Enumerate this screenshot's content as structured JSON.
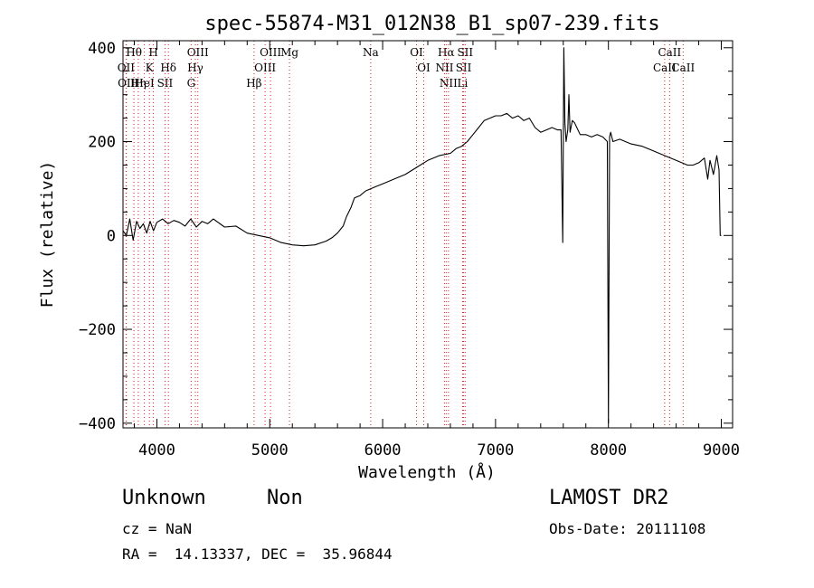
{
  "chart_data": {
    "type": "line",
    "title": "spec-55874-M31_012N38_B1_sp07-239.fits",
    "xlabel": "Wavelength (Å)",
    "ylabel": "Flux (relative)",
    "xlim": [
      3700,
      9100
    ],
    "ylim": [
      -410,
      415
    ],
    "x_ticks": [
      4000,
      5000,
      6000,
      7000,
      8000,
      9000
    ],
    "x_tick_labels": [
      "4000",
      "5000",
      "6000",
      "7000",
      "8000",
      "9000"
    ],
    "y_ticks": [
      -400,
      -200,
      0,
      200,
      400
    ],
    "y_tick_labels": [
      "−400",
      "−200",
      "0",
      "200",
      "400"
    ],
    "grid": false,
    "series": [
      {
        "color": "#000000",
        "x": [
          3700,
          3730,
          3760,
          3790,
          3820,
          3850,
          3880,
          3910,
          3940,
          3970,
          4000,
          4050,
          4100,
          4150,
          4200,
          4250,
          4300,
          4350,
          4400,
          4450,
          4500,
          4600,
          4700,
          4800,
          4900,
          5000,
          5100,
          5200,
          5300,
          5400,
          5500,
          5550,
          5600,
          5650,
          5680,
          5700,
          5720,
          5750,
          5800,
          5850,
          5900,
          5950,
          6000,
          6100,
          6200,
          6300,
          6400,
          6500,
          6600,
          6650,
          6700,
          6750,
          6800,
          6850,
          6900,
          6950,
          7000,
          7050,
          7100,
          7150,
          7200,
          7250,
          7300,
          7350,
          7400,
          7450,
          7500,
          7550,
          7580,
          7595,
          7605,
          7615,
          7625,
          7640,
          7650,
          7660,
          7680,
          7700,
          7750,
          7800,
          7850,
          7900,
          7950,
          7990,
          8000,
          8010,
          8020,
          8040,
          8100,
          8200,
          8300,
          8400,
          8500,
          8600,
          8700,
          8750,
          8800,
          8850,
          8880,
          8900,
          8930,
          8960,
          8980,
          8990,
          9000
        ],
        "y": [
          10,
          0,
          35,
          -10,
          30,
          15,
          25,
          5,
          30,
          10,
          28,
          35,
          25,
          32,
          28,
          20,
          35,
          18,
          30,
          25,
          35,
          18,
          20,
          5,
          0,
          -5,
          -15,
          -20,
          -22,
          -20,
          -12,
          -5,
          5,
          20,
          40,
          50,
          60,
          80,
          85,
          95,
          100,
          105,
          110,
          120,
          130,
          145,
          160,
          170,
          175,
          185,
          190,
          200,
          215,
          230,
          245,
          250,
          255,
          255,
          260,
          250,
          255,
          245,
          250,
          230,
          220,
          225,
          230,
          225,
          225,
          -15,
          400,
          240,
          200,
          225,
          300,
          220,
          245,
          240,
          215,
          215,
          210,
          215,
          210,
          200,
          -400,
          210,
          220,
          200,
          205,
          195,
          190,
          180,
          170,
          160,
          150,
          150,
          155,
          165,
          120,
          160,
          130,
          170,
          140,
          0,
          0
        ]
      }
    ],
    "line_markers": [
      {
        "label": "Hθ",
        "x": 3797
      },
      {
        "label": "OII",
        "x": 3727
      },
      {
        "label": "OII",
        "x": 3730
      },
      {
        "label": "K",
        "x": 3934
      },
      {
        "label": "HeI",
        "x": 3889
      },
      {
        "label": "Hη",
        "x": 3835
      },
      {
        "label": "H",
        "x": 3969
      },
      {
        "label": "Hδ",
        "x": 4102
      },
      {
        "label": "SII",
        "x": 4072
      },
      {
        "label": "OIII",
        "x": 4363
      },
      {
        "label": "Hγ",
        "x": 4341
      },
      {
        "label": "G",
        "x": 4304
      },
      {
        "label": "OIII",
        "x": 5007
      },
      {
        "label": "OIII",
        "x": 4959
      },
      {
        "label": "Hβ",
        "x": 4861
      },
      {
        "label": "Mg",
        "x": 5175
      },
      {
        "label": "Na",
        "x": 5894
      },
      {
        "label": "OI",
        "x": 6300
      },
      {
        "label": "OI",
        "x": 6364
      },
      {
        "label": "Hα",
        "x": 6563
      },
      {
        "label": "SII",
        "x": 6717
      },
      {
        "label": "NII",
        "x": 6583
      },
      {
        "label": "Li",
        "x": 6708
      },
      {
        "label": "NII",
        "x": 6548
      },
      {
        "label": "SII",
        "x": 6731
      },
      {
        "label": "CaII",
        "x": 8542
      },
      {
        "label": "CaII",
        "x": 8498
      },
      {
        "label": "CaII",
        "x": 8662
      }
    ]
  },
  "footer": {
    "object_type": "Unknown",
    "object_class": "Non",
    "survey": "LAMOST DR2",
    "cz": "cz = NaN",
    "obs_date": "Obs-Date: 20111108",
    "radec": "RA =  14.13337, DEC =  35.96844"
  }
}
